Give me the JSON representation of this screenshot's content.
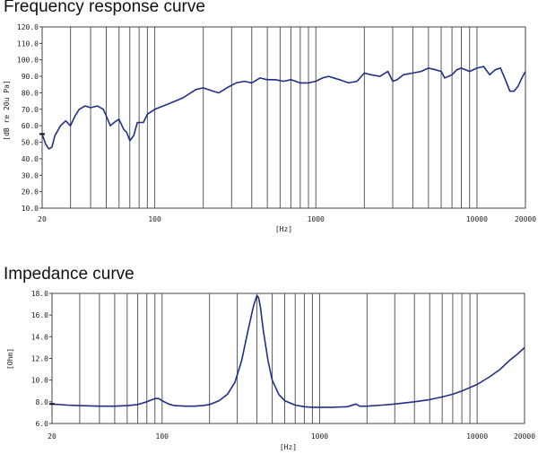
{
  "chart_data": [
    {
      "type": "line",
      "title": "Frequency response curve",
      "xlabel": "[Hz]",
      "ylabel": "[dB re 20u Pa]",
      "xscale": "log",
      "xlim": [
        20,
        20000
      ],
      "ylim": [
        10,
        120
      ],
      "x_ticks": [
        "20",
        "100",
        "1000",
        "10000",
        "20000"
      ],
      "y_ticks": [
        "120.0",
        "110.0",
        "100.0",
        "90.0",
        "80.0",
        "70.0",
        "60.0",
        "50.0",
        "40.0",
        "30.0",
        "20.0",
        "10.0"
      ],
      "grid": "vertical",
      "line_color": "#1f2f8a",
      "series": [
        {
          "x": [
            20,
            21,
            22,
            23,
            24,
            26,
            28,
            30,
            32,
            34,
            37,
            40,
            44,
            48,
            50,
            53,
            56,
            60,
            64,
            67,
            70,
            74,
            78,
            85,
            90,
            100,
            120,
            150,
            180,
            200,
            230,
            250,
            280,
            320,
            360,
            400,
            450,
            500,
            560,
            630,
            700,
            800,
            900,
            1000,
            1100,
            1200,
            1400,
            1600,
            1800,
            2000,
            2200,
            2500,
            2800,
            3000,
            3200,
            3500,
            4000,
            4500,
            5000,
            5500,
            6000,
            6300,
            7000,
            7500,
            8000,
            9000,
            10000,
            11000,
            12000,
            13000,
            14000,
            15000,
            16000,
            17000,
            18000,
            19000,
            20000
          ],
          "values": [
            55,
            49,
            46,
            47,
            54,
            60,
            63,
            60,
            66,
            70,
            72,
            71,
            72,
            70,
            66,
            60,
            62,
            64,
            58,
            56,
            51,
            54,
            62,
            62,
            67,
            70,
            73,
            77,
            82,
            83,
            81,
            80,
            83,
            86,
            87,
            86,
            89,
            88,
            88,
            87,
            88,
            86,
            86,
            87,
            89,
            90,
            88,
            86,
            87,
            92,
            91,
            90,
            93,
            87,
            88,
            91,
            92,
            93,
            95,
            94,
            93,
            89,
            91,
            94,
            95,
            93,
            95,
            96,
            91,
            94,
            95,
            88,
            81,
            81,
            84,
            89,
            93
          ]
        }
      ]
    },
    {
      "type": "line",
      "title": "Impedance curve",
      "xlabel": "[Hz]",
      "ylabel": "[Ohm]",
      "xscale": "log",
      "xlim": [
        20,
        20000
      ],
      "ylim": [
        6,
        18
      ],
      "x_ticks": [
        "20",
        "100",
        "1000",
        "10000",
        "20000"
      ],
      "y_ticks": [
        "18.0",
        "16.0",
        "14.0",
        "12.0",
        "10.0",
        "8.0",
        "6.0"
      ],
      "grid": "vertical",
      "line_color": "#1f2f8a",
      "series": [
        {
          "x": [
            20,
            25,
            30,
            40,
            50,
            60,
            70,
            80,
            90,
            95,
            100,
            110,
            120,
            140,
            160,
            180,
            200,
            230,
            260,
            290,
            320,
            350,
            380,
            400,
            410,
            420,
            440,
            470,
            500,
            550,
            600,
            700,
            800,
            900,
            1000,
            1200,
            1500,
            1700,
            1800,
            2000,
            2500,
            3000,
            4000,
            5000,
            6000,
            7000,
            8000,
            10000,
            12000,
            14000,
            16000,
            18000,
            20000
          ],
          "values": [
            7.8,
            7.7,
            7.65,
            7.6,
            7.6,
            7.65,
            7.75,
            8.0,
            8.3,
            8.3,
            8.1,
            7.8,
            7.65,
            7.6,
            7.6,
            7.65,
            7.75,
            8.1,
            8.7,
            9.8,
            11.8,
            14.5,
            16.8,
            17.8,
            17.6,
            16.8,
            14.5,
            11.8,
            10.0,
            8.7,
            8.1,
            7.7,
            7.55,
            7.5,
            7.5,
            7.5,
            7.55,
            7.8,
            7.6,
            7.6,
            7.7,
            7.8,
            8.0,
            8.2,
            8.45,
            8.7,
            9.0,
            9.6,
            10.3,
            11.0,
            11.8,
            12.4,
            13.0
          ]
        }
      ]
    }
  ]
}
